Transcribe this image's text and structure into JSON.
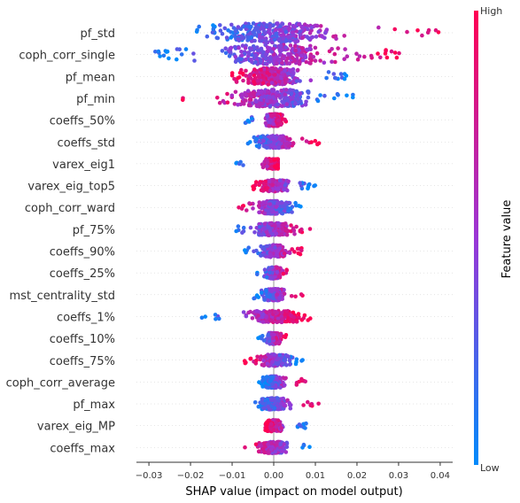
{
  "chart_data": {
    "type": "scatter",
    "subtype": "shap-beeswarm",
    "xlabel": "SHAP value (impact on model output)",
    "xlim": [
      -0.033,
      0.043
    ],
    "x_ticks": [
      -0.03,
      -0.02,
      -0.01,
      0.0,
      0.01,
      0.02,
      0.03,
      0.04
    ],
    "x_tick_labels": [
      "−0.03",
      "−0.02",
      "−0.01",
      "0.00",
      "0.01",
      "0.02",
      "0.03",
      "0.04"
    ],
    "zero_line": 0.0,
    "colorbar": {
      "title": "Feature value",
      "high_label": "High",
      "low_label": "Low",
      "low_color": "#008bfb",
      "high_color": "#ff0052"
    },
    "features": [
      {
        "name": "pf_std",
        "min": -0.023,
        "max": 0.04,
        "low_side": "negative",
        "spread": 1.0
      },
      {
        "name": "coph_corr_single",
        "min": -0.03,
        "max": 0.032,
        "low_side": "negative",
        "spread": 1.0
      },
      {
        "name": "pf_mean",
        "min": -0.01,
        "max": 0.02,
        "low_side": "positive",
        "spread": 0.8
      },
      {
        "name": "pf_min",
        "min": -0.022,
        "max": 0.02,
        "low_side": "positive",
        "spread": 0.85
      },
      {
        "name": "coeffs_50%",
        "min": -0.007,
        "max": 0.003,
        "low_side": "negative",
        "spread": 0.5
      },
      {
        "name": "coeffs_std",
        "min": -0.008,
        "max": 0.011,
        "low_side": "negative",
        "spread": 0.5
      },
      {
        "name": "varex_eig1",
        "min": -0.01,
        "max": 0.001,
        "low_side": "negative",
        "spread": 0.35
      },
      {
        "name": "varex_eig_top5",
        "min": -0.005,
        "max": 0.01,
        "low_side": "positive",
        "spread": 0.45
      },
      {
        "name": "coph_corr_ward",
        "min": -0.009,
        "max": 0.007,
        "low_side": "positive",
        "spread": 0.55
      },
      {
        "name": "pf_75%",
        "min": -0.011,
        "max": 0.009,
        "low_side": "negative",
        "spread": 0.5
      },
      {
        "name": "coeffs_90%",
        "min": -0.007,
        "max": 0.007,
        "low_side": "negative",
        "spread": 0.5
      },
      {
        "name": "coeffs_25%",
        "min": -0.004,
        "max": 0.004,
        "low_side": "negative",
        "spread": 0.45
      },
      {
        "name": "mst_centrality_std",
        "min": -0.005,
        "max": 0.007,
        "low_side": "negative",
        "spread": 0.45
      },
      {
        "name": "coeffs_1%",
        "min": -0.02,
        "max": 0.009,
        "low_side": "negative",
        "spread": 0.45
      },
      {
        "name": "coeffs_10%",
        "min": -0.004,
        "max": 0.003,
        "low_side": "negative",
        "spread": 0.45
      },
      {
        "name": "coeffs_75%",
        "min": -0.007,
        "max": 0.007,
        "low_side": "positive",
        "spread": 0.45
      },
      {
        "name": "coph_corr_average",
        "min": -0.004,
        "max": 0.008,
        "low_side": "negative",
        "spread": 0.45
      },
      {
        "name": "pf_max",
        "min": -0.005,
        "max": 0.011,
        "low_side": "negative",
        "spread": 0.45
      },
      {
        "name": "varex_eig_MP",
        "min": -0.002,
        "max": 0.008,
        "low_side": "positive",
        "spread": 0.45
      },
      {
        "name": "coeffs_max",
        "min": -0.007,
        "max": 0.009,
        "low_side": "positive",
        "spread": 0.45
      }
    ]
  }
}
